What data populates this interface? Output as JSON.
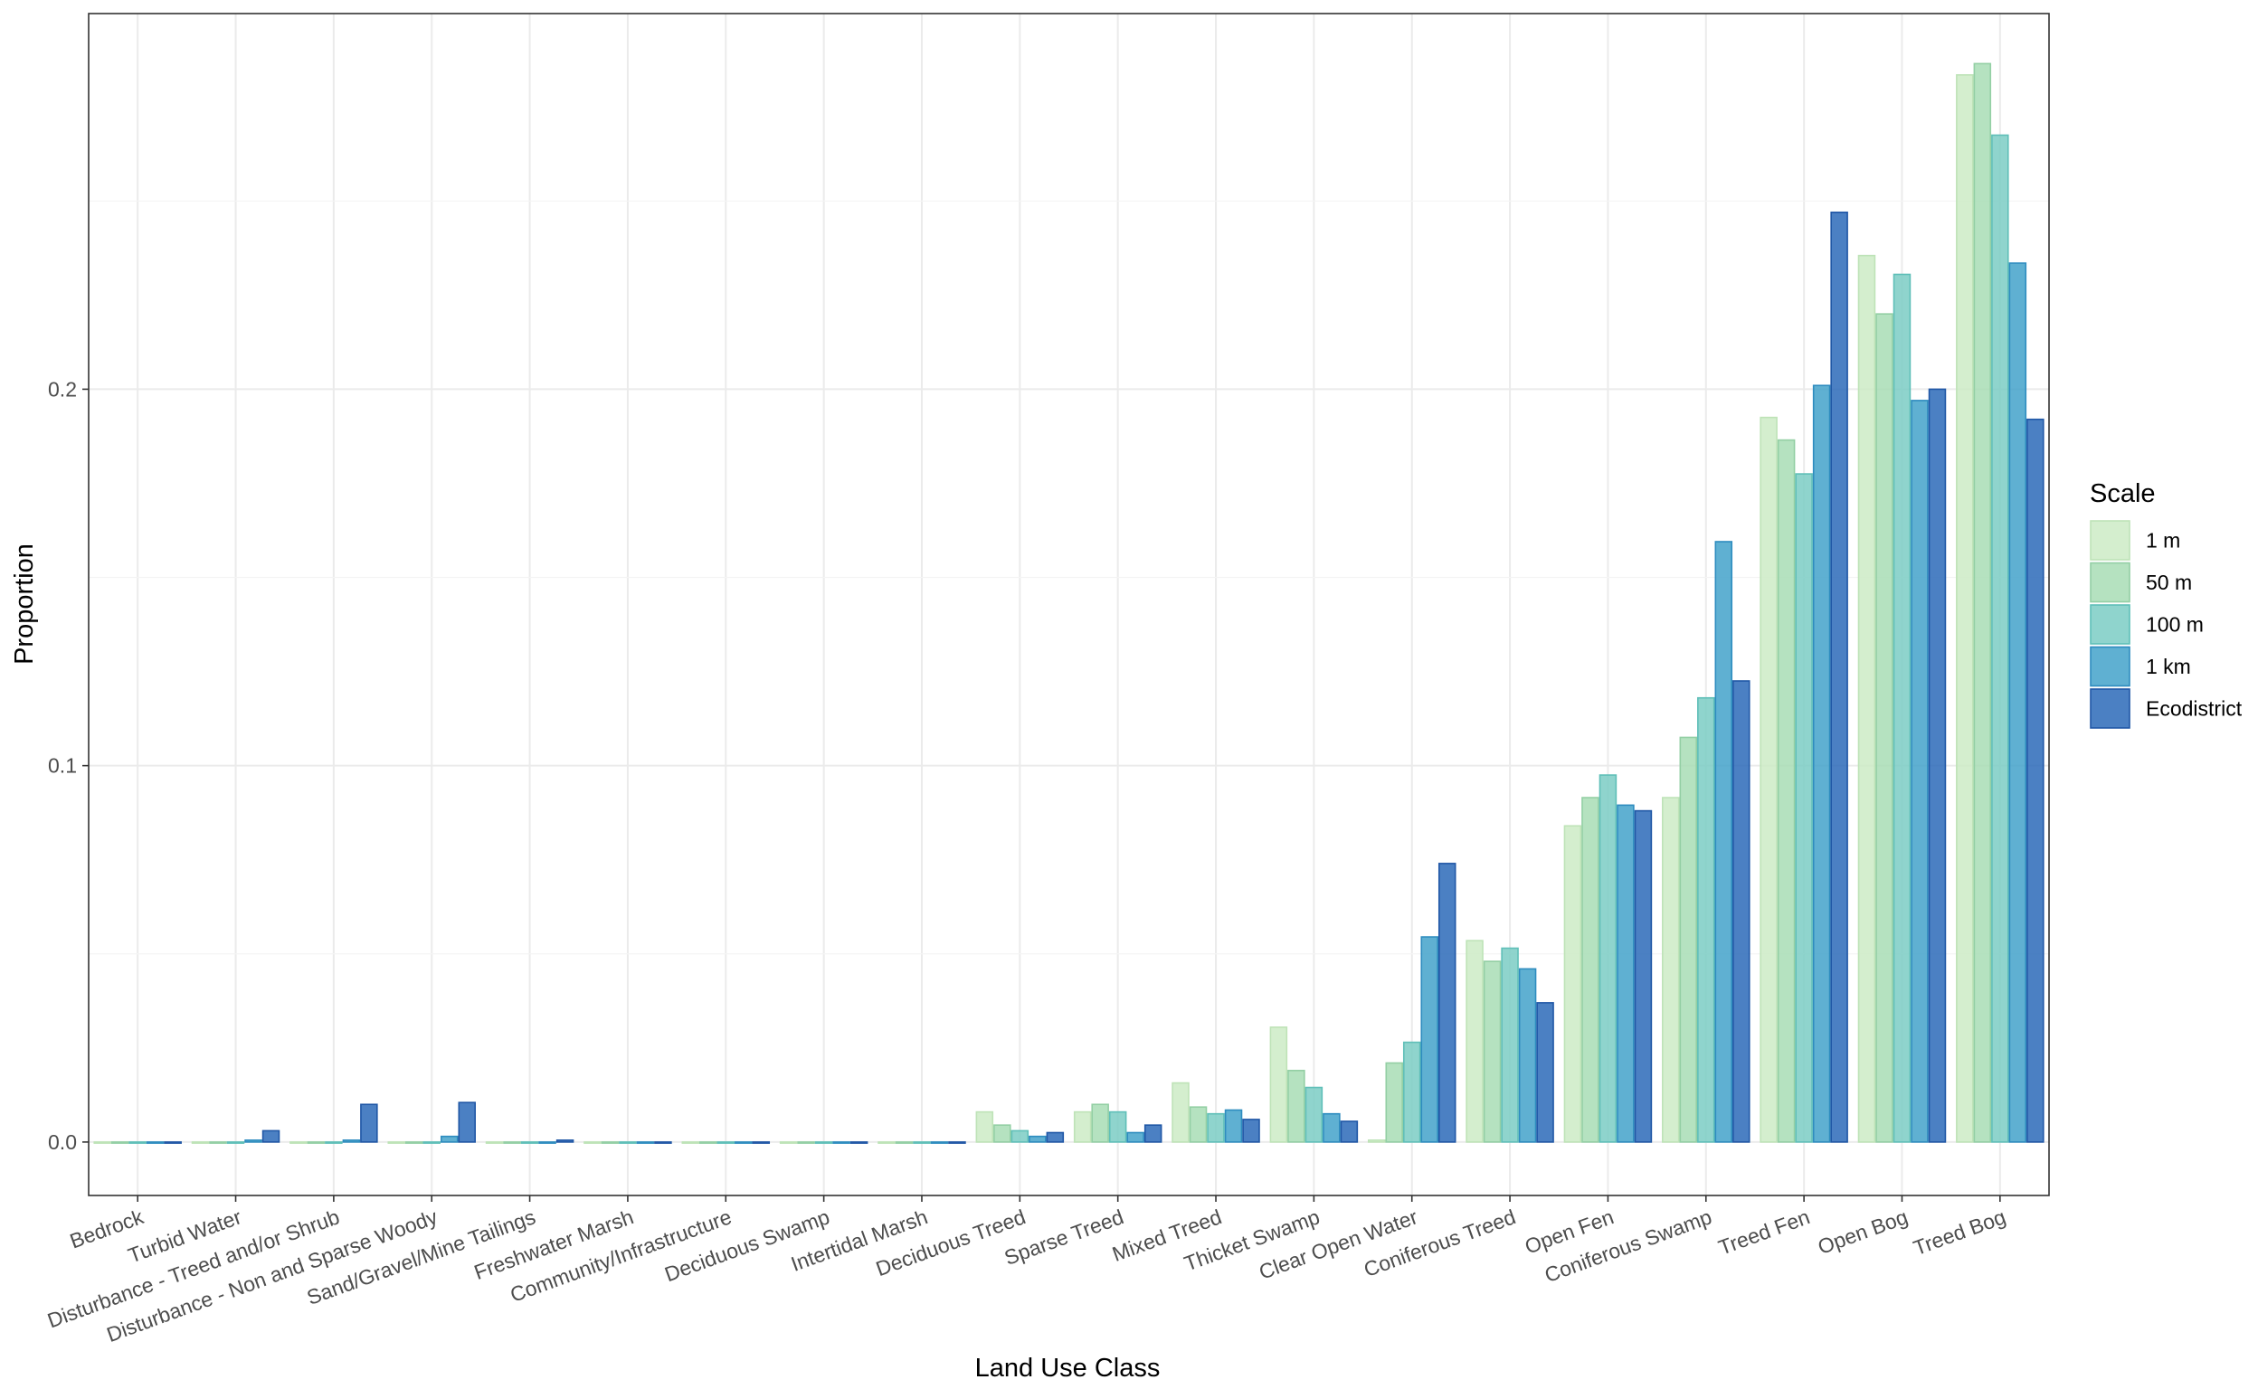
{
  "chart_data": {
    "type": "bar",
    "title": "",
    "xlabel": "Land Use Class",
    "ylabel": "Proportion",
    "ylim": [
      -0.0142,
      0.2998
    ],
    "yticks": [
      0.0,
      0.1,
      0.2
    ],
    "ytick_labels": [
      "0.0",
      "0.1",
      "0.2"
    ],
    "grid": true,
    "legend_title": "Scale",
    "legend_position": "right",
    "categories": [
      "Bedrock",
      "Turbid Water",
      "Disturbance - Treed and/or Shrub",
      "Disturbance - Non and Sparse Woody",
      "Sand/Gravel/Mine Tailings",
      "Freshwater Marsh",
      "Community/Infrastructure",
      "Deciduous Swamp",
      "Intertidal Marsh",
      "Deciduous Treed",
      "Sparse Treed",
      "Mixed Treed",
      "Thicket Swamp",
      "Clear Open Water",
      "Coniferous Treed",
      "Open Fen",
      "Coniferous Swamp",
      "Treed Fen",
      "Open Bog",
      "Treed Bog"
    ],
    "series": [
      {
        "name": "1 m",
        "color": "#CCEBC5",
        "border": "#BEE3B7",
        "values": [
          0.0,
          0.0,
          0.0,
          0.0,
          0.0,
          0.0,
          0.0,
          0.0,
          0.0,
          0.008,
          0.008,
          0.0157,
          0.0305,
          0.0005,
          0.0535,
          0.084,
          0.0915,
          0.1925,
          0.2355,
          0.2835
        ]
      },
      {
        "name": "50 m",
        "color": "#A8DDB5",
        "border": "#93CFA4",
        "values": [
          0.0,
          0.0,
          0.0,
          0.0,
          0.0,
          0.0,
          0.0,
          0.0,
          0.0,
          0.0045,
          0.01,
          0.0093,
          0.019,
          0.021,
          0.048,
          0.0915,
          0.1075,
          0.1865,
          0.22,
          0.2865
        ]
      },
      {
        "name": "100 m",
        "color": "#7BCCC4",
        "border": "#5FBFB8",
        "values": [
          0.0,
          0.0,
          0.0,
          0.0,
          0.0,
          0.0,
          0.0,
          0.0,
          0.0,
          0.003,
          0.008,
          0.0075,
          0.0145,
          0.0265,
          0.0515,
          0.0975,
          0.118,
          0.1775,
          0.2305,
          0.2675
        ]
      },
      {
        "name": "1 km",
        "color": "#43A2CA",
        "border": "#2E8CBF",
        "values": [
          0.0,
          0.0005,
          0.0005,
          0.0015,
          0.0,
          0.0,
          0.0,
          0.0,
          0.0,
          0.0015,
          0.0025,
          0.0085,
          0.0075,
          0.0545,
          0.046,
          0.0895,
          0.1595,
          0.201,
          0.197,
          0.2335
        ]
      },
      {
        "name": "Ecodistrict",
        "color": "#2B6AB8",
        "border": "#2057A6",
        "values": [
          0.0,
          0.003,
          0.01,
          0.0105,
          0.0005,
          0.0,
          0.0,
          0.0,
          0.0,
          0.0025,
          0.0045,
          0.006,
          0.0055,
          0.074,
          0.037,
          0.088,
          0.1225,
          0.247,
          0.2,
          0.192
        ]
      }
    ]
  }
}
